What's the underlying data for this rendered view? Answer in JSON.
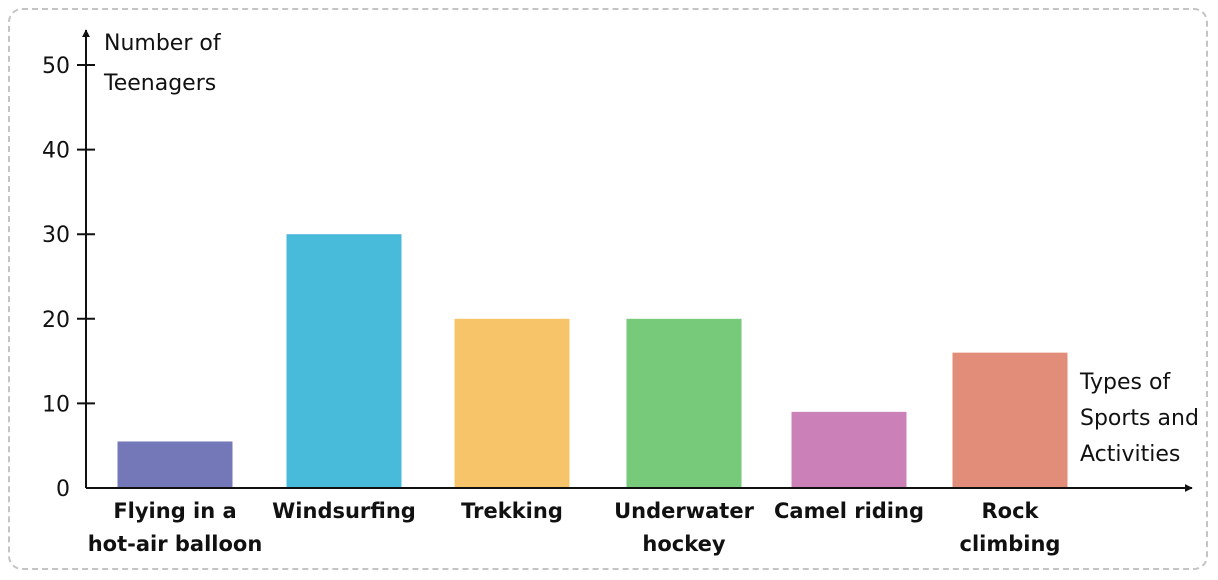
{
  "chart_data": {
    "type": "bar",
    "title": "",
    "ylabel_lines": [
      "Number of",
      "Teenagers"
    ],
    "xlabel_lines": [
      "Types of",
      "Sports and",
      "Activities"
    ],
    "ylim": [
      0,
      50
    ],
    "yticks": [
      0,
      10,
      20,
      30,
      40,
      50
    ],
    "grid": false,
    "categories": [
      {
        "lines": [
          "Flying in a",
          "hot-air balloon"
        ]
      },
      {
        "lines": [
          "Windsurfing"
        ]
      },
      {
        "lines": [
          "Trekking"
        ]
      },
      {
        "lines": [
          "Underwater",
          "hockey"
        ]
      },
      {
        "lines": [
          "Camel riding"
        ]
      },
      {
        "lines": [
          "Rock",
          "climbing"
        ]
      }
    ],
    "values": [
      5.5,
      30,
      20,
      20,
      9,
      16
    ],
    "colors": [
      "#7478b8",
      "#48bbdb",
      "#f8c46a",
      "#77ca7a",
      "#cc80b8",
      "#e18d79"
    ]
  }
}
